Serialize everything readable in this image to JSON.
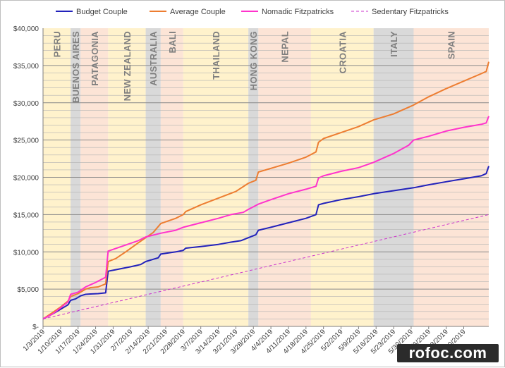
{
  "chart_data": {
    "type": "line",
    "x_start": "1/3/2019",
    "x_end": "6/30/2019",
    "ylim": [
      0,
      40000
    ],
    "yticks": [
      0,
      5000,
      10000,
      15000,
      20000,
      25000,
      30000,
      35000,
      40000
    ],
    "ytick_labels": [
      "$-",
      "$5,000",
      "$10,000",
      "$15,000",
      "$20,000",
      "$25,000",
      "$30,000",
      "$35,000",
      "$40,000"
    ],
    "xtick_labels": [
      "1/3/2019",
      "1/10/2019",
      "1/17/2019",
      "1/24/2019",
      "1/31/2019",
      "2/7/2019",
      "2/14/2019",
      "2/21/2019",
      "2/28/2019",
      "3/7/2019",
      "3/14/2019",
      "3/21/2019",
      "3/28/2019",
      "4/4/2019",
      "4/11/2019",
      "4/18/2019",
      "4/25/2019",
      "5/2/2019",
      "5/9/2019",
      "5/16/2019",
      "5/23/2019",
      "5/30/2019",
      "6/6/2019",
      "6/13/2019",
      "6/20/2019"
    ],
    "grid": "horizontal",
    "legend_position": "top",
    "regions": [
      {
        "label": "PERU",
        "start": "1/3/2019",
        "end": "1/14/2019",
        "color": "#fff2cc"
      },
      {
        "label": "BUENOS AIRES",
        "start": "1/14/2019",
        "end": "1/18/2019",
        "color": "#d9d9d9"
      },
      {
        "label": "PATAGONIA",
        "start": "1/18/2019",
        "end": "1/29/2019",
        "color": "#fce4d6"
      },
      {
        "label": "NEW ZEALAND",
        "start": "1/29/2019",
        "end": "2/13/2019",
        "color": "#fff2cc"
      },
      {
        "label": "AUSTRALIA",
        "start": "2/13/2019",
        "end": "2/19/2019",
        "color": "#d9d9d9"
      },
      {
        "label": "BALI",
        "start": "2/19/2019",
        "end": "2/28/2019",
        "color": "#fce4d6"
      },
      {
        "label": "THAILAND",
        "start": "2/28/2019",
        "end": "3/26/2019",
        "color": "#fff2cc"
      },
      {
        "label": "HONG KONG",
        "start": "3/26/2019",
        "end": "3/30/2019",
        "color": "#d9d9d9"
      },
      {
        "label": "NEPAL",
        "start": "3/30/2019",
        "end": "4/20/2019",
        "color": "#fce4d6"
      },
      {
        "label": "CROATIA",
        "start": "4/20/2019",
        "end": "5/15/2019",
        "color": "#fff2cc"
      },
      {
        "label": "ITALY",
        "start": "5/15/2019",
        "end": "5/31/2019",
        "color": "#d9d9d9"
      },
      {
        "label": "SPAIN",
        "start": "5/31/2019",
        "end": "6/30/2019",
        "color": "#fce4d6"
      }
    ],
    "series": [
      {
        "name": "Budget Couple",
        "color": "#2222bb",
        "dash": false,
        "points": [
          [
            "1/3/2019",
            1000
          ],
          [
            "1/7/2019",
            1700
          ],
          [
            "1/10/2019",
            2300
          ],
          [
            "1/13/2019",
            2900
          ],
          [
            "1/14/2019",
            3500
          ],
          [
            "1/16/2019",
            3700
          ],
          [
            "1/17/2019",
            3900
          ],
          [
            "1/18/2019",
            4100
          ],
          [
            "1/20/2019",
            4300
          ],
          [
            "1/22/2019",
            4350
          ],
          [
            "1/25/2019",
            4400
          ],
          [
            "1/28/2019",
            4500
          ],
          [
            "1/29/2019",
            7400
          ],
          [
            "2/1/2019",
            7600
          ],
          [
            "2/4/2019",
            7800
          ],
          [
            "2/7/2019",
            8000
          ],
          [
            "2/11/2019",
            8300
          ],
          [
            "2/13/2019",
            8700
          ],
          [
            "2/16/2019",
            9000
          ],
          [
            "2/18/2019",
            9200
          ],
          [
            "2/19/2019",
            9700
          ],
          [
            "2/25/2019",
            10000
          ],
          [
            "2/28/2019",
            10200
          ],
          [
            "3/1/2019",
            10500
          ],
          [
            "3/7/2019",
            10700
          ],
          [
            "3/14/2019",
            11000
          ],
          [
            "3/19/2019",
            11300
          ],
          [
            "3/23/2019",
            11500
          ],
          [
            "3/26/2019",
            11900
          ],
          [
            "3/29/2019",
            12300
          ],
          [
            "3/30/2019",
            12900
          ],
          [
            "4/4/2019",
            13300
          ],
          [
            "4/11/2019",
            13900
          ],
          [
            "4/18/2019",
            14500
          ],
          [
            "4/22/2019",
            15000
          ],
          [
            "4/23/2019",
            16300
          ],
          [
            "4/25/2019",
            16500
          ],
          [
            "5/2/2019",
            17000
          ],
          [
            "5/9/2019",
            17400
          ],
          [
            "5/15/2019",
            17800
          ],
          [
            "5/23/2019",
            18200
          ],
          [
            "5/31/2019",
            18600
          ],
          [
            "6/6/2019",
            19000
          ],
          [
            "6/13/2019",
            19400
          ],
          [
            "6/20/2019",
            19800
          ],
          [
            "6/27/2019",
            20200
          ],
          [
            "6/29/2019",
            20500
          ],
          [
            "6/30/2019",
            21500
          ]
        ]
      },
      {
        "name": "Average Couple",
        "color": "#ed7d31",
        "dash": false,
        "points": [
          [
            "1/3/2019",
            1000
          ],
          [
            "1/7/2019",
            1900
          ],
          [
            "1/10/2019",
            2600
          ],
          [
            "1/13/2019",
            3400
          ],
          [
            "1/14/2019",
            4000
          ],
          [
            "1/17/2019",
            4400
          ],
          [
            "1/20/2019",
            5000
          ],
          [
            "1/22/2019",
            5200
          ],
          [
            "1/25/2019",
            5300
          ],
          [
            "1/28/2019",
            5700
          ],
          [
            "1/29/2019",
            8700
          ],
          [
            "2/1/2019",
            9100
          ],
          [
            "2/5/2019",
            10000
          ],
          [
            "2/10/2019",
            11200
          ],
          [
            "2/13/2019",
            11900
          ],
          [
            "2/16/2019",
            12600
          ],
          [
            "2/19/2019",
            13800
          ],
          [
            "2/25/2019",
            14500
          ],
          [
            "2/28/2019",
            15000
          ],
          [
            "3/1/2019",
            15400
          ],
          [
            "3/7/2019",
            16300
          ],
          [
            "3/14/2019",
            17200
          ],
          [
            "3/21/2019",
            18100
          ],
          [
            "3/26/2019",
            19200
          ],
          [
            "3/29/2019",
            19600
          ],
          [
            "3/30/2019",
            20700
          ],
          [
            "4/4/2019",
            21200
          ],
          [
            "4/11/2019",
            21900
          ],
          [
            "4/18/2019",
            22700
          ],
          [
            "4/22/2019",
            23400
          ],
          [
            "4/23/2019",
            24700
          ],
          [
            "4/25/2019",
            25200
          ],
          [
            "5/2/2019",
            26000
          ],
          [
            "5/9/2019",
            26800
          ],
          [
            "5/15/2019",
            27700
          ],
          [
            "5/23/2019",
            28500
          ],
          [
            "5/31/2019",
            29700
          ],
          [
            "6/6/2019",
            30800
          ],
          [
            "6/13/2019",
            31900
          ],
          [
            "6/20/2019",
            32900
          ],
          [
            "6/27/2019",
            33900
          ],
          [
            "6/29/2019",
            34200
          ],
          [
            "6/30/2019",
            35500
          ]
        ]
      },
      {
        "name": "Nomadic Fitzpatricks",
        "color": "#ff33cc",
        "dash": false,
        "points": [
          [
            "1/3/2019",
            1000
          ],
          [
            "1/7/2019",
            1700
          ],
          [
            "1/10/2019",
            2500
          ],
          [
            "1/13/2019",
            3300
          ],
          [
            "1/14/2019",
            4300
          ],
          [
            "1/17/2019",
            4600
          ],
          [
            "1/20/2019",
            5300
          ],
          [
            "1/24/2019",
            5900
          ],
          [
            "1/28/2019",
            6600
          ],
          [
            "1/29/2019",
            10100
          ],
          [
            "2/4/2019",
            10800
          ],
          [
            "2/10/2019",
            11500
          ],
          [
            "2/13/2019",
            12000
          ],
          [
            "2/19/2019",
            12500
          ],
          [
            "2/25/2019",
            12900
          ],
          [
            "2/28/2019",
            13300
          ],
          [
            "3/7/2019",
            13900
          ],
          [
            "3/14/2019",
            14500
          ],
          [
            "3/19/2019",
            15000
          ],
          [
            "3/24/2019",
            15300
          ],
          [
            "3/26/2019",
            15700
          ],
          [
            "3/30/2019",
            16400
          ],
          [
            "4/4/2019",
            17000
          ],
          [
            "4/11/2019",
            17800
          ],
          [
            "4/18/2019",
            18400
          ],
          [
            "4/22/2019",
            18800
          ],
          [
            "4/23/2019",
            19900
          ],
          [
            "4/25/2019",
            20200
          ],
          [
            "5/2/2019",
            20800
          ],
          [
            "5/9/2019",
            21300
          ],
          [
            "5/15/2019",
            22000
          ],
          [
            "5/23/2019",
            23200
          ],
          [
            "5/29/2019",
            24300
          ],
          [
            "5/31/2019",
            25000
          ],
          [
            "6/6/2019",
            25500
          ],
          [
            "6/13/2019",
            26200
          ],
          [
            "6/20/2019",
            26700
          ],
          [
            "6/27/2019",
            27100
          ],
          [
            "6/29/2019",
            27300
          ],
          [
            "6/30/2019",
            28200
          ]
        ]
      },
      {
        "name": "Sedentary Fitzpatricks",
        "color": "#cc33cc",
        "dash": true,
        "points": [
          [
            "1/3/2019",
            1000
          ],
          [
            "6/30/2019",
            15000
          ]
        ]
      }
    ]
  },
  "watermark": "rofoc.com"
}
